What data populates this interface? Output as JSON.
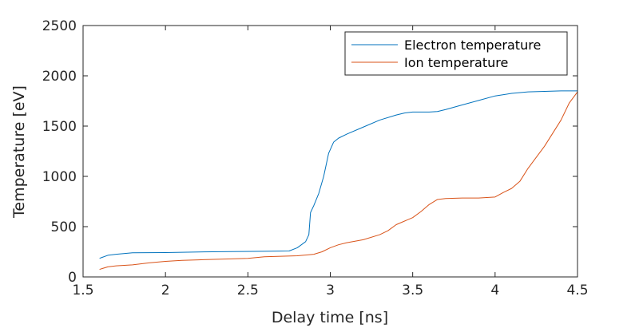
{
  "chart_data": {
    "type": "line",
    "xlabel": "Delay time [ns]",
    "ylabel": "Temperature [eV]",
    "xlim": [
      1.5,
      4.5
    ],
    "ylim": [
      0,
      2500
    ],
    "xticks": [
      1.5,
      2,
      2.5,
      3,
      3.5,
      4,
      4.5
    ],
    "xtick_labels": [
      "1.5",
      "2",
      "2.5",
      "3",
      "3.5",
      "4",
      "4.5"
    ],
    "yticks": [
      0,
      500,
      1000,
      1500,
      2000,
      2500
    ],
    "ytick_labels": [
      "0",
      "500",
      "1000",
      "1500",
      "2000",
      "2500"
    ],
    "grid": false,
    "legend_position": "top-right",
    "series": [
      {
        "name": "Electron temperature",
        "color": "#0072BD",
        "x": [
          1.6,
          1.65,
          1.7,
          1.8,
          2.0,
          2.2,
          2.4,
          2.6,
          2.75,
          2.8,
          2.85,
          2.87,
          2.88,
          2.9,
          2.93,
          2.96,
          2.99,
          3.02,
          3.05,
          3.1,
          3.2,
          3.3,
          3.4,
          3.45,
          3.5,
          3.55,
          3.6,
          3.65,
          3.7,
          3.8,
          3.9,
          4.0,
          4.1,
          4.2,
          4.3,
          4.4,
          4.5
        ],
        "y": [
          185,
          215,
          225,
          240,
          242,
          248,
          252,
          255,
          258,
          290,
          350,
          420,
          640,
          710,
          830,
          1000,
          1230,
          1340,
          1380,
          1420,
          1490,
          1560,
          1610,
          1630,
          1640,
          1640,
          1640,
          1645,
          1665,
          1710,
          1755,
          1800,
          1825,
          1840,
          1845,
          1850,
          1850
        ]
      },
      {
        "name": "Ion temperature",
        "color": "#D95319",
        "x": [
          1.6,
          1.65,
          1.7,
          1.8,
          1.9,
          2.0,
          2.1,
          2.2,
          2.4,
          2.5,
          2.6,
          2.7,
          2.8,
          2.9,
          2.95,
          3.0,
          3.05,
          3.1,
          3.2,
          3.3,
          3.35,
          3.4,
          3.5,
          3.55,
          3.6,
          3.65,
          3.7,
          3.8,
          3.9,
          4.0,
          4.05,
          4.1,
          4.15,
          4.2,
          4.25,
          4.3,
          4.35,
          4.4,
          4.45,
          4.5
        ],
        "y": [
          75,
          100,
          110,
          120,
          140,
          155,
          165,
          170,
          180,
          185,
          200,
          205,
          210,
          225,
          250,
          290,
          320,
          340,
          370,
          420,
          460,
          520,
          590,
          650,
          720,
          770,
          780,
          785,
          785,
          795,
          840,
          880,
          950,
          1080,
          1190,
          1300,
          1430,
          1560,
          1730,
          1840
        ]
      }
    ]
  }
}
